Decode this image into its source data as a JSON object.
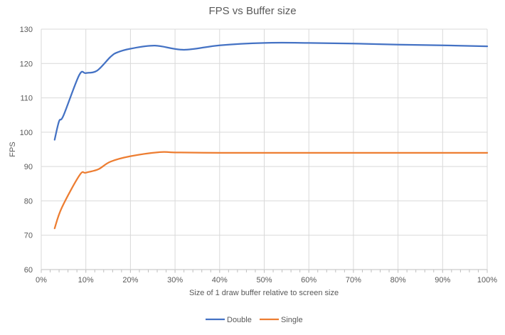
{
  "chart_data": {
    "type": "line",
    "title": "FPS vs Buffer size",
    "xlabel": "Size of 1 draw buffer relative to screen size",
    "ylabel": "FPS",
    "xlim": [
      0,
      100
    ],
    "ylim": [
      60,
      130
    ],
    "x_ticks": [
      "0%",
      "10%",
      "20%",
      "30%",
      "40%",
      "50%",
      "60%",
      "70%",
      "80%",
      "90%",
      "100%"
    ],
    "y_ticks": [
      "60",
      "70",
      "80",
      "90",
      "100",
      "110",
      "120",
      "130"
    ],
    "grid": true,
    "legend_position": "bottom",
    "series": [
      {
        "name": "Double",
        "color": "#4472C4",
        "x": [
          3,
          4,
          5,
          8.5,
          10,
          12.5,
          15.5,
          17,
          20,
          25.5,
          32,
          40,
          50,
          60,
          70,
          80,
          90,
          100
        ],
        "y": [
          97.8,
          103.2,
          104.9,
          116.6,
          117.2,
          117.9,
          121.9,
          123.2,
          124.3,
          125.2,
          124,
          125.3,
          126,
          126,
          125.8,
          125.5,
          125.3,
          125
        ]
      },
      {
        "name": "Single",
        "color": "#ED7D31",
        "x": [
          3,
          4.6,
          8.6,
          10,
          12.8,
          15.5,
          20,
          26.6,
          30,
          40,
          50,
          60,
          70,
          80,
          90,
          100
        ],
        "y": [
          72,
          78,
          87.5,
          88.2,
          89.2,
          91.4,
          93,
          94.2,
          94.1,
          94,
          94,
          94,
          94,
          94,
          94,
          94
        ]
      }
    ]
  }
}
